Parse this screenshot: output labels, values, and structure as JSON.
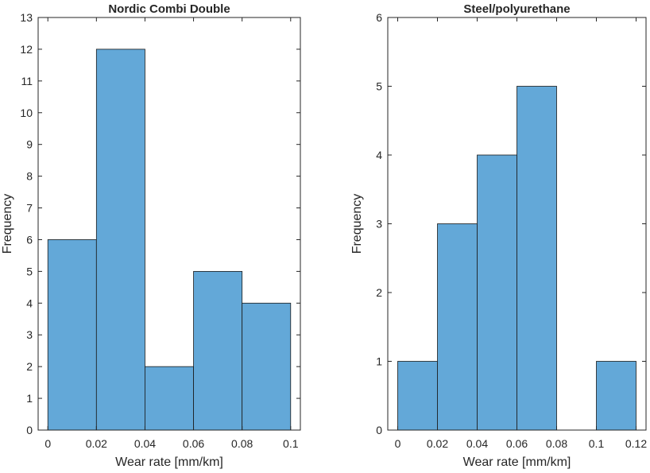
{
  "chart_data": [
    {
      "type": "bar",
      "title": "Nordic Combi Double",
      "xlabel": "Wear rate [mm/km]",
      "ylabel": "Frequency",
      "bin_edges": [
        0,
        0.02,
        0.04,
        0.06,
        0.08,
        0.1
      ],
      "values": [
        6,
        12,
        2,
        5,
        4
      ],
      "xlim": [
        -0.004,
        0.104
      ],
      "ylim": [
        0,
        13
      ],
      "xticks": [
        0,
        0.02,
        0.04,
        0.06,
        0.08,
        0.1
      ],
      "xtick_labels": [
        "0",
        "0.02",
        "0.04",
        "0.06",
        "0.08",
        "0.1"
      ],
      "yticks": [
        0,
        1,
        2,
        3,
        4,
        5,
        6,
        7,
        8,
        9,
        10,
        11,
        12,
        13
      ],
      "ytick_labels": [
        "0",
        "1",
        "2",
        "3",
        "4",
        "5",
        "6",
        "7",
        "8",
        "9",
        "10",
        "11",
        "12",
        "13"
      ],
      "bar_color": "#63a8d8",
      "edge_color": "#1a1a1a",
      "grid": false
    },
    {
      "type": "bar",
      "title": "Steel/polyurethane",
      "xlabel": "Wear rate [mm/km]",
      "ylabel": "Frequency",
      "bin_edges": [
        0,
        0.02,
        0.04,
        0.06,
        0.08,
        0.1,
        0.12
      ],
      "values": [
        1,
        3,
        4,
        5,
        0,
        1
      ],
      "xlim": [
        -0.005,
        0.125
      ],
      "ylim": [
        0,
        6
      ],
      "xticks": [
        0,
        0.02,
        0.04,
        0.06,
        0.08,
        0.1,
        0.12
      ],
      "xtick_labels": [
        "0",
        "0.02",
        "0.04",
        "0.06",
        "0.08",
        "0.1",
        "0.12"
      ],
      "yticks": [
        0,
        1,
        2,
        3,
        4,
        5,
        6
      ],
      "ytick_labels": [
        "0",
        "1",
        "2",
        "3",
        "4",
        "5",
        "6"
      ],
      "bar_color": "#63a8d8",
      "edge_color": "#1a1a1a",
      "grid": false
    }
  ]
}
